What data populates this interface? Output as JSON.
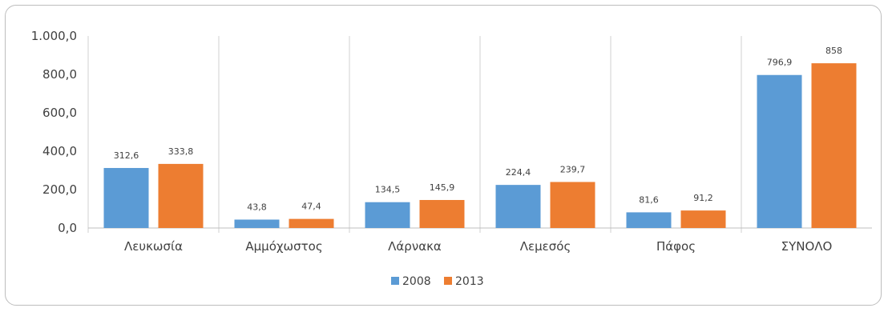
{
  "chart_data": {
    "type": "bar",
    "categories": [
      "Λευκωσία",
      "Αμμόχωστος",
      "Λάρνακα",
      "Λεμεσός",
      "Πάφος",
      "ΣΥΝΟΛΟ"
    ],
    "series": [
      {
        "name": "2008",
        "values": [
          312.6,
          43.8,
          134.5,
          224.4,
          81.6,
          796.9
        ],
        "labels": [
          "312,6",
          "43,8",
          "134,5",
          "224,4",
          "81,6",
          "796,9"
        ],
        "color": "#5b9bd5"
      },
      {
        "name": "2013",
        "values": [
          333.8,
          47.4,
          145.9,
          239.7,
          91.2,
          858
        ],
        "labels": [
          "333,8",
          "47,4",
          "145,9",
          "239,7",
          "91,2",
          "858"
        ],
        "color": "#ed7d31"
      }
    ],
    "ylim": [
      0,
      1000
    ],
    "yticks": [
      0,
      200,
      400,
      600,
      800,
      1000
    ],
    "ytick_labels": [
      "0,0",
      "200,0",
      "400,0",
      "600,0",
      "800,0",
      "1.000,0"
    ],
    "title": "",
    "xlabel": "",
    "ylabel": "",
    "legend_position": "bottom",
    "grid": false,
    "category_separators": true
  }
}
